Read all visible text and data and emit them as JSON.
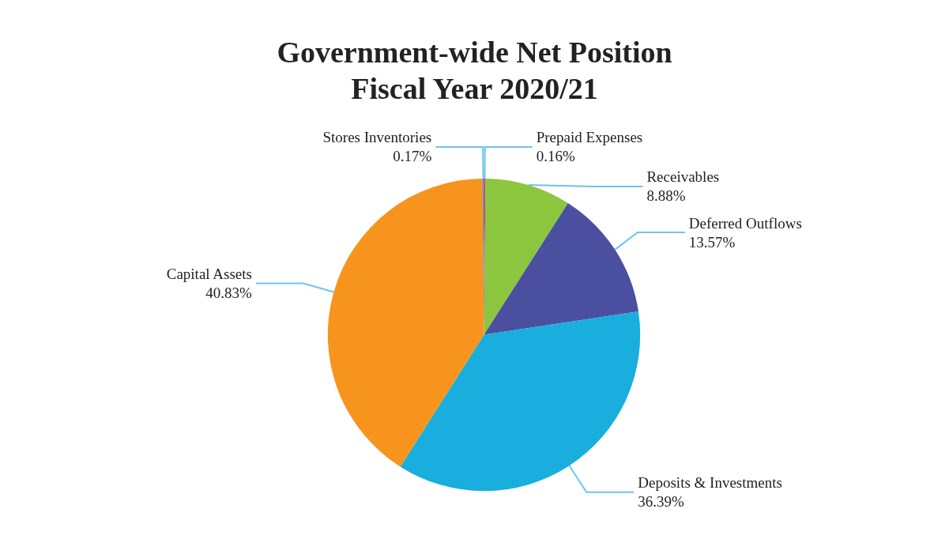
{
  "chart_data": {
    "type": "pie",
    "title": "Government-wide Net Position\nFiscal Year 2020/21",
    "categories": [
      "Prepaid Expenses",
      "Receivables",
      "Deferred Outflows",
      "Deposits & Investments",
      "Capital Assets",
      "Stores Inventories"
    ],
    "values": [
      0.16,
      8.88,
      13.57,
      36.39,
      40.83,
      0.17
    ],
    "value_labels": [
      "0.16%",
      "8.88%",
      "13.57%",
      "36.39%",
      "40.83%",
      "0.17%"
    ],
    "colors": [
      "#c0304a",
      "#8cc63f",
      "#4b4fa0",
      "#19aede",
      "#f7941d",
      "#6f7fa8"
    ],
    "legend": false
  }
}
